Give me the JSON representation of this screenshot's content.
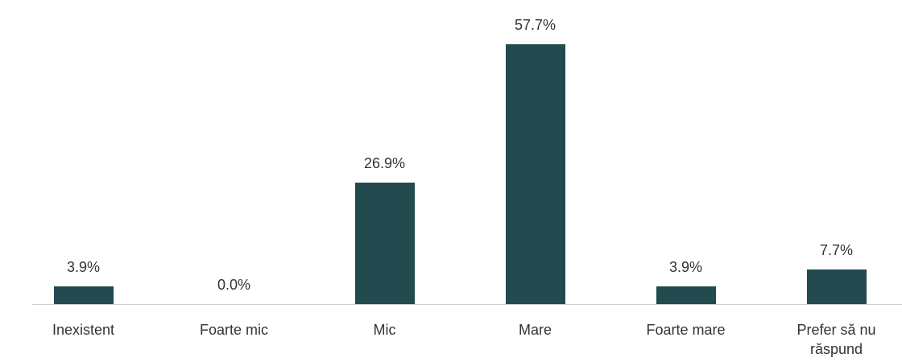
{
  "chart_data": {
    "type": "bar",
    "categories": [
      "Inexistent",
      "Foarte mic",
      "Mic",
      "Mare",
      "Foarte mare",
      "Prefer să nu răspund"
    ],
    "values": [
      3.9,
      0.0,
      26.9,
      57.7,
      3.9,
      7.7
    ],
    "value_labels": [
      "3.9%",
      "0.0%",
      "26.9%",
      "57.7%",
      "3.9%",
      "7.7%"
    ],
    "color": "#234a4f"
  }
}
